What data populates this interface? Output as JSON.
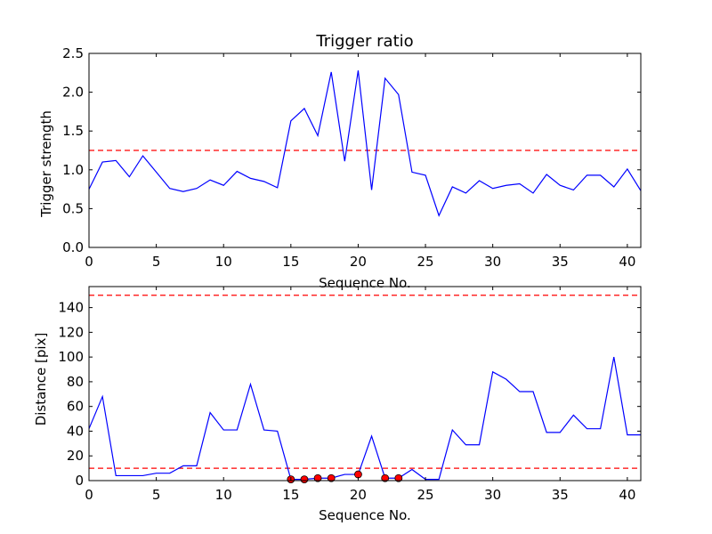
{
  "chart_data": [
    {
      "type": "line",
      "title": "Trigger ratio",
      "xlabel": "Sequence No.",
      "ylabel": "Trigger strength",
      "xlim": [
        0,
        41
      ],
      "ylim": [
        0,
        2.5
      ],
      "grid": false,
      "xticks": [
        0,
        5,
        10,
        15,
        20,
        25,
        30,
        35,
        40
      ],
      "xtick_labels": [
        "0",
        "5",
        "10",
        "15",
        "20",
        "25",
        "30",
        "35",
        "40"
      ],
      "yticks": [
        0,
        0.5,
        1.0,
        1.5,
        2.0,
        2.5
      ],
      "ytick_labels": [
        "0.0",
        "0.5",
        "1.0",
        "1.5",
        "2.0",
        "2.5"
      ],
      "series": [
        {
          "color": "#0000ff",
          "x": [
            0,
            1,
            2,
            3,
            4,
            5,
            6,
            7,
            8,
            9,
            10,
            11,
            12,
            13,
            14,
            15,
            16,
            17,
            18,
            19,
            20,
            21,
            22,
            23,
            24,
            25,
            26,
            27,
            28,
            29,
            30,
            31,
            32,
            33,
            34,
            35,
            36,
            37,
            38,
            39,
            40,
            41
          ],
          "y": [
            0.75,
            1.1,
            1.12,
            0.91,
            1.18,
            0.97,
            0.76,
            0.72,
            0.76,
            0.87,
            0.8,
            0.98,
            0.89,
            0.85,
            0.77,
            1.63,
            1.79,
            1.44,
            2.26,
            1.11,
            2.28,
            0.74,
            2.18,
            1.97,
            0.97,
            0.93,
            0.41,
            0.78,
            0.7,
            0.86,
            0.76,
            0.8,
            0.82,
            0.7,
            0.94,
            0.8,
            0.74,
            0.93,
            0.93,
            0.78,
            1.01,
            0.73
          ]
        }
      ],
      "hlines": [
        {
          "y": 1.25,
          "color": "#ff0000",
          "style": "dashed"
        }
      ]
    },
    {
      "type": "line",
      "title": "",
      "xlabel": "Sequence No.",
      "ylabel": "Distance [pix]",
      "xlim": [
        0,
        41
      ],
      "ylim": [
        0,
        157
      ],
      "grid": false,
      "xticks": [
        0,
        5,
        10,
        15,
        20,
        25,
        30,
        35,
        40
      ],
      "xtick_labels": [
        "0",
        "5",
        "10",
        "15",
        "20",
        "25",
        "30",
        "35",
        "40"
      ],
      "yticks": [
        0,
        20,
        40,
        60,
        80,
        100,
        120,
        140
      ],
      "ytick_labels": [
        "0",
        "20",
        "40",
        "60",
        "80",
        "100",
        "120",
        "140"
      ],
      "series": [
        {
          "color": "#0000ff",
          "x": [
            0,
            1,
            2,
            3,
            4,
            5,
            6,
            7,
            8,
            9,
            10,
            11,
            12,
            13,
            14,
            15,
            16,
            17,
            18,
            19,
            20,
            21,
            22,
            23,
            24,
            25,
            26,
            27,
            28,
            29,
            30,
            31,
            32,
            33,
            34,
            35,
            36,
            37,
            38,
            39,
            40,
            41
          ],
          "y": [
            42,
            68,
            4,
            4,
            4,
            6,
            6,
            12,
            12,
            55,
            41,
            41,
            78,
            41,
            40,
            1,
            1,
            2,
            2,
            5,
            5,
            36,
            2,
            2,
            9,
            1,
            1,
            41,
            29,
            29,
            88,
            82,
            72,
            72,
            39,
            39,
            53,
            42,
            42,
            100,
            37,
            37
          ]
        }
      ],
      "markers": {
        "color": "#ff0000",
        "x": [
          15,
          16,
          17,
          18,
          20,
          22,
          23
        ],
        "y": [
          1,
          1,
          2,
          2,
          5,
          2,
          2
        ]
      },
      "hlines": [
        {
          "y": 150,
          "color": "#ff0000",
          "style": "dashed"
        },
        {
          "y": 10,
          "color": "#ff0000",
          "style": "dashed"
        }
      ]
    }
  ]
}
